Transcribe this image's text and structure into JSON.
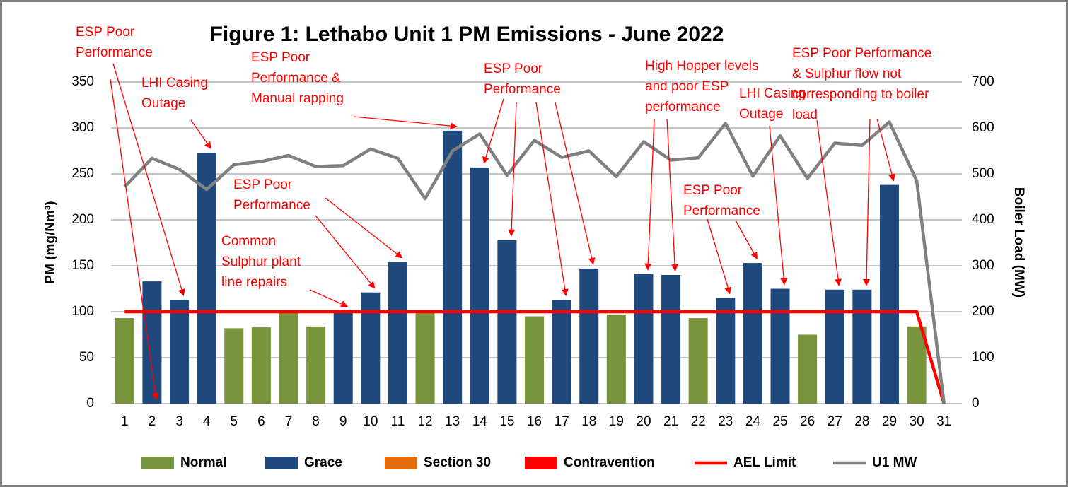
{
  "chart_data": {
    "type": "bar",
    "title": "Figure 1: Lethabo Unit 1 PM Emissions -  June 2022",
    "y_label": "PM (mg/Nm³)",
    "y2_label": "Boiler Load (MW)",
    "categories": [
      "1",
      "2",
      "3",
      "4",
      "5",
      "6",
      "7",
      "8",
      "9",
      "10",
      "11",
      "12",
      "13",
      "14",
      "15",
      "16",
      "17",
      "18",
      "19",
      "20",
      "21",
      "22",
      "23",
      "24",
      "25",
      "26",
      "27",
      "28",
      "29",
      "30",
      "31"
    ],
    "series": [
      {
        "name": "Normal",
        "color": "#77933c",
        "kind": "bar",
        "values": [
          93,
          null,
          null,
          null,
          82,
          83,
          100,
          84,
          null,
          null,
          null,
          99,
          null,
          null,
          null,
          95,
          null,
          null,
          97,
          null,
          null,
          93,
          null,
          null,
          null,
          75,
          null,
          null,
          null,
          84,
          null
        ]
      },
      {
        "name": "Grace",
        "color": "#1f497d",
        "kind": "bar",
        "values": [
          null,
          133,
          113,
          273,
          null,
          null,
          null,
          null,
          101,
          121,
          154,
          null,
          297,
          257,
          178,
          null,
          113,
          147,
          null,
          141,
          140,
          null,
          115,
          153,
          125,
          null,
          124,
          124,
          238,
          null,
          null
        ]
      },
      {
        "name": "Section 30",
        "color": "#e46c0a",
        "kind": "bar",
        "values": [
          null,
          null,
          null,
          null,
          null,
          null,
          null,
          null,
          null,
          null,
          null,
          null,
          null,
          null,
          null,
          null,
          null,
          null,
          null,
          null,
          null,
          null,
          null,
          null,
          null,
          null,
          null,
          null,
          null,
          null,
          null
        ]
      },
      {
        "name": "Contravention",
        "color": "#ff0000",
        "kind": "bar",
        "values": [
          null,
          null,
          null,
          null,
          null,
          null,
          null,
          null,
          null,
          null,
          null,
          null,
          null,
          null,
          null,
          null,
          null,
          null,
          null,
          null,
          null,
          null,
          null,
          null,
          null,
          null,
          null,
          null,
          null,
          null,
          null
        ]
      },
      {
        "name": "AEL Limit",
        "color": "#ff0000",
        "kind": "line",
        "values": [
          100,
          100,
          100,
          100,
          100,
          100,
          100,
          100,
          100,
          100,
          100,
          100,
          100,
          100,
          100,
          100,
          100,
          100,
          100,
          100,
          100,
          100,
          100,
          100,
          100,
          100,
          100,
          100,
          100,
          100,
          0
        ]
      },
      {
        "name": "U1 MW",
        "color": "#808080",
        "kind": "line",
        "axis": "y2",
        "values": [
          472,
          534,
          510,
          466,
          520,
          527,
          540,
          516,
          518,
          554,
          534,
          446,
          550,
          587,
          497,
          573,
          536,
          550,
          494,
          570,
          530,
          535,
          610,
          495,
          583,
          490,
          567,
          562,
          613,
          485,
          0
        ]
      }
    ],
    "ylim": [
      0,
      350
    ],
    "yticks": [
      0,
      50,
      100,
      150,
      200,
      250,
      300,
      350
    ],
    "y2lim": [
      0,
      700
    ],
    "y2ticks": [
      0,
      100,
      200,
      300,
      400,
      500,
      600,
      700
    ],
    "grid": true,
    "legend": "bottom",
    "annotations": [
      {
        "lines": [
          "ESP Poor",
          "Performance"
        ]
      },
      {
        "lines": [
          "LHI Casing",
          "Outage"
        ]
      },
      {
        "lines": [
          "ESP Poor",
          "Performance &",
          "Manual rapping"
        ]
      },
      {
        "lines": [
          "ESP Poor",
          "Performance"
        ]
      },
      {
        "lines": [
          "Common",
          "Sulphur plant",
          "line repairs"
        ]
      },
      {
        "lines": [
          "ESP Poor",
          "Performance"
        ]
      },
      {
        "lines": [
          "High Hopper levels",
          "and poor ESP",
          "performance"
        ]
      },
      {
        "lines": [
          "ESP Poor",
          "Performance"
        ]
      },
      {
        "lines": [
          "LHI Casing",
          "Outage"
        ]
      },
      {
        "lines": [
          "ESP Poor Performance",
          "& Sulphur flow not",
          "corresponding to boiler",
          "load"
        ]
      }
    ]
  }
}
